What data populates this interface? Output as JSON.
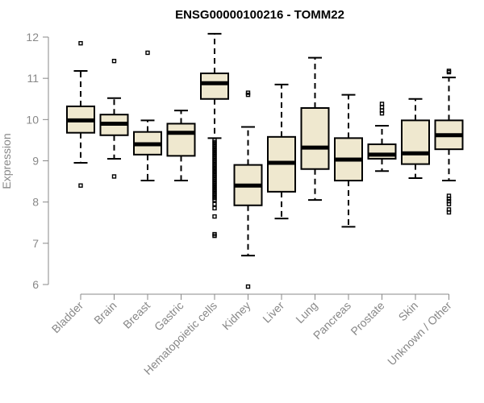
{
  "chart_data": {
    "type": "boxplot",
    "title": "ENSG00000100216 - TOMM22",
    "ylabel": "Expression",
    "ylim": [
      6,
      12
    ],
    "yticks": [
      6,
      7,
      8,
      9,
      10,
      11,
      12
    ],
    "box_fill": "#efe8cf",
    "categories": [
      "Bladder",
      "Brain",
      "Breast",
      "Gastric",
      "Hematopoietic cells",
      "Kidney",
      "Liver",
      "Lung",
      "Pancreas",
      "Prostate",
      "Skin",
      "Unknown / Other"
    ],
    "boxes": [
      {
        "min": 8.95,
        "q1": 9.68,
        "median": 9.98,
        "q3": 10.32,
        "max": 11.18,
        "outliers": [
          11.85,
          8.4
        ]
      },
      {
        "min": 9.05,
        "q1": 9.62,
        "median": 9.9,
        "q3": 10.12,
        "max": 10.52,
        "outliers": [
          11.42,
          8.62
        ]
      },
      {
        "min": 8.52,
        "q1": 9.15,
        "median": 9.4,
        "q3": 9.7,
        "max": 9.98,
        "outliers": [
          11.62
        ]
      },
      {
        "min": 8.52,
        "q1": 9.12,
        "median": 9.68,
        "q3": 9.9,
        "max": 10.22,
        "outliers": []
      },
      {
        "min": 9.55,
        "q1": 10.5,
        "median": 10.88,
        "q3": 11.12,
        "max": 12.08,
        "outliers": [
          9.5,
          9.45,
          9.4,
          9.35,
          9.3,
          9.25,
          9.2,
          9.15,
          9.1,
          9.05,
          9.0,
          8.95,
          8.9,
          8.85,
          8.8,
          8.75,
          8.7,
          8.65,
          8.6,
          8.55,
          8.5,
          8.45,
          8.4,
          8.35,
          8.3,
          8.25,
          8.2,
          8.15,
          8.1,
          8.05,
          7.95,
          7.85,
          7.65,
          7.22,
          7.18
        ]
      },
      {
        "min": 6.7,
        "q1": 7.92,
        "median": 8.4,
        "q3": 8.9,
        "max": 9.82,
        "outliers": [
          10.65,
          10.6,
          5.95
        ]
      },
      {
        "min": 7.6,
        "q1": 8.25,
        "median": 8.95,
        "q3": 9.58,
        "max": 10.85,
        "outliers": []
      },
      {
        "min": 8.05,
        "q1": 8.8,
        "median": 9.32,
        "q3": 10.28,
        "max": 11.5,
        "outliers": []
      },
      {
        "min": 7.4,
        "q1": 8.52,
        "median": 9.03,
        "q3": 9.55,
        "max": 10.6,
        "outliers": []
      },
      {
        "min": 8.75,
        "q1": 9.05,
        "median": 9.15,
        "q3": 9.4,
        "max": 9.85,
        "outliers": [
          10.38,
          10.3,
          10.22,
          10.15
        ]
      },
      {
        "min": 8.58,
        "q1": 8.92,
        "median": 9.18,
        "q3": 9.98,
        "max": 10.5,
        "outliers": []
      },
      {
        "min": 8.52,
        "q1": 9.28,
        "median": 9.62,
        "q3": 9.98,
        "max": 11.02,
        "outliers": [
          11.18,
          11.15,
          8.15,
          8.08,
          8.02,
          7.95,
          7.82,
          7.75
        ]
      }
    ]
  }
}
